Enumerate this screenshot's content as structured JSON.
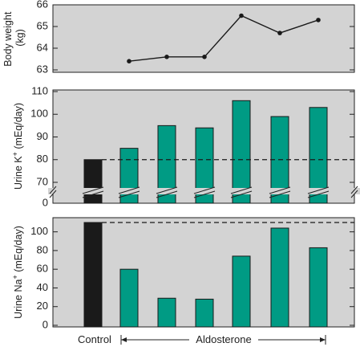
{
  "chart_data": [
    {
      "type": "line",
      "ylabel": "Body weight (kg)",
      "ylabel_lines": [
        "Body weight",
        "(kg)"
      ],
      "ylim": [
        63,
        66
      ],
      "yticks": [
        "63",
        "64",
        "65",
        "66"
      ],
      "x": [
        1,
        2,
        3,
        4,
        5,
        6
      ],
      "values": [
        63.4,
        63.6,
        63.6,
        65.5,
        64.7,
        65.3
      ],
      "background": "#d3d3d3"
    },
    {
      "type": "bar",
      "ylabel": "Urine K+ (mEq/day)",
      "ylim": [
        65,
        110
      ],
      "axis_break": true,
      "yticks": [
        "0",
        "70",
        "80",
        "90",
        "100",
        "110"
      ],
      "control": 80,
      "values": [
        85,
        95,
        94,
        106,
        99,
        103
      ],
      "reference_line": 80,
      "background": "#d3d3d3"
    },
    {
      "type": "bar",
      "ylabel": "Urine Na+ (mEq/day)",
      "ylim": [
        0,
        110
      ],
      "yticks": [
        "0",
        "20",
        "40",
        "60",
        "80",
        "100"
      ],
      "control": 110,
      "values": [
        60,
        29,
        28,
        74,
        104,
        83
      ],
      "reference_line": 110,
      "background": "#d3d3d3"
    }
  ],
  "x_labels": {
    "control": "Control",
    "treatment": "Aldosterone"
  },
  "colors": {
    "control_bar": "#1a1a1a",
    "treatment_bar": "#009b84",
    "panel_background": "#d3d3d3"
  }
}
